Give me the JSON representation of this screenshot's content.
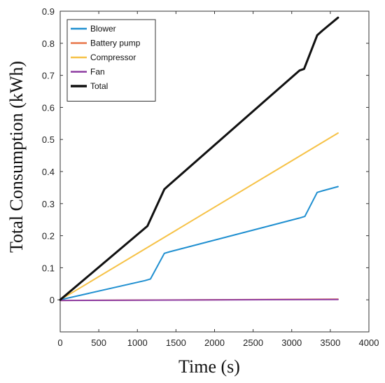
{
  "chart_data": {
    "type": "line",
    "title": "",
    "xlabel": "Time (s)",
    "ylabel": "Total Consumption (kWh)",
    "xlim": [
      0,
      4000
    ],
    "ylim": [
      -0.1,
      0.9
    ],
    "xticks": [
      0,
      500,
      1000,
      1500,
      2000,
      2500,
      3000,
      3500,
      4000
    ],
    "xtick_labels": [
      "0",
      "500",
      "1000",
      "1500",
      "2000",
      "2500",
      "3000",
      "3500",
      "4000"
    ],
    "yticks": [
      0,
      0.1,
      0.2,
      0.3,
      0.4,
      0.5,
      0.6,
      0.7,
      0.8,
      0.9
    ],
    "ytick_labels": [
      "0",
      "0.1",
      "0.2",
      "0.3",
      "0.4",
      "0.5",
      "0.6",
      "0.7",
      "0.8",
      "0.9"
    ],
    "grid": false,
    "legend_position": "top-left",
    "series": [
      {
        "name": "Blower",
        "color": "#1f8fd0",
        "stroke_width": 2,
        "points": [
          [
            0,
            0
          ],
          [
            1100,
            0.06
          ],
          [
            1170,
            0.065
          ],
          [
            1350,
            0.145
          ],
          [
            1420,
            0.15
          ],
          [
            3100,
            0.255
          ],
          [
            3170,
            0.26
          ],
          [
            3330,
            0.335
          ],
          [
            3400,
            0.34
          ],
          [
            3600,
            0.353
          ]
        ]
      },
      {
        "name": "Battery pump",
        "color": "#e8764a",
        "stroke_width": 2,
        "points": [
          [
            0,
            -0.002
          ],
          [
            3600,
            0.002
          ]
        ]
      },
      {
        "name": "Compressor",
        "color": "#f6c247",
        "stroke_width": 2,
        "points": [
          [
            0,
            0
          ],
          [
            3600,
            0.52
          ]
        ]
      },
      {
        "name": "Fan",
        "color": "#8e3da2",
        "stroke_width": 2,
        "points": [
          [
            0,
            -0.002
          ],
          [
            3600,
            0.001
          ]
        ]
      },
      {
        "name": "Total",
        "color": "#111111",
        "stroke_width": 3,
        "points": [
          [
            0,
            0
          ],
          [
            1130,
            0.23
          ],
          [
            1350,
            0.345
          ],
          [
            1420,
            0.36
          ],
          [
            3100,
            0.715
          ],
          [
            3160,
            0.72
          ],
          [
            3330,
            0.825
          ],
          [
            3400,
            0.84
          ],
          [
            3600,
            0.88
          ]
        ]
      }
    ]
  }
}
